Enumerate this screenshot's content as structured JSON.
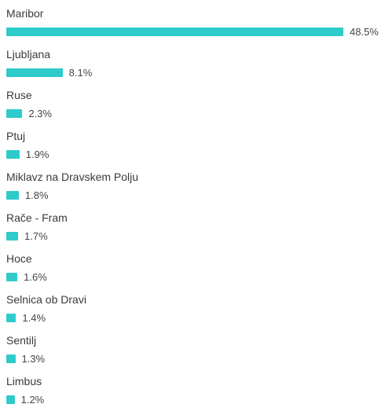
{
  "chart_data": {
    "type": "bar",
    "orientation": "horizontal",
    "categories": [
      "Maribor",
      "Ljubljana",
      "Ruse",
      "Ptuj",
      "Miklavz na Dravskem Polju",
      "Rače - Fram",
      "Hoce",
      "Selnica ob Dravi",
      "Sentilj",
      "Limbus"
    ],
    "values": [
      48.5,
      8.1,
      2.3,
      1.9,
      1.8,
      1.7,
      1.6,
      1.4,
      1.3,
      1.2
    ],
    "value_labels": [
      "48.5%",
      "8.1%",
      "2.3%",
      "1.9%",
      "1.8%",
      "1.7%",
      "1.6%",
      "1.4%",
      "1.3%",
      "1.2%"
    ],
    "unit": "%",
    "xlim": [
      0,
      48.5
    ],
    "grid": false,
    "legend": "none",
    "bar_color": "#2fcbcb"
  }
}
